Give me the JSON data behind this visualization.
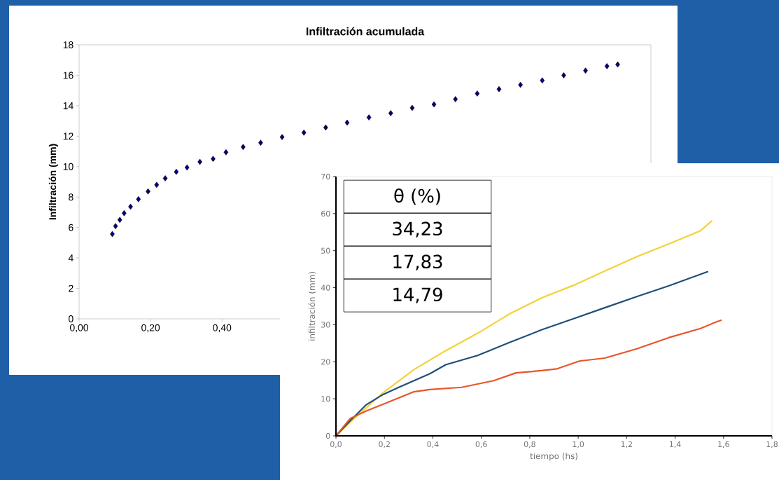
{
  "chart_data": [
    {
      "type": "scatter",
      "title": "Infiltración acumulada",
      "ylabel": "Infiltración (mm)",
      "marker": "diamond",
      "xlim": [
        0,
        1.6
      ],
      "xticks": [
        {
          "value": 0,
          "label": "0,00"
        },
        {
          "value": 0.2,
          "label": "0,20"
        },
        {
          "value": 0.4,
          "label": "0,40"
        }
      ],
      "ylim": [
        0,
        18
      ],
      "yticks": [
        0,
        2,
        4,
        6,
        8,
        10,
        12,
        14,
        16,
        18
      ],
      "series": [
        {
          "color": "#000080",
          "x": [
            0.093,
            0.102,
            0.114,
            0.126,
            0.144,
            0.166,
            0.193,
            0.217,
            0.241,
            0.272,
            0.302,
            0.338,
            0.375,
            0.411,
            0.459,
            0.508,
            0.568,
            0.629,
            0.69,
            0.75,
            0.811,
            0.872,
            0.932,
            0.993,
            1.053,
            1.114,
            1.175,
            1.235,
            1.296,
            1.356,
            1.417,
            1.477,
            1.507
          ],
          "values": [
            5.57,
            6.09,
            6.5,
            6.94,
            7.37,
            7.86,
            8.37,
            8.8,
            9.23,
            9.66,
            9.94,
            10.31,
            10.51,
            10.94,
            11.29,
            11.57,
            11.94,
            12.23,
            12.57,
            12.89,
            13.23,
            13.51,
            13.86,
            14.09,
            14.43,
            14.8,
            15.09,
            15.37,
            15.66,
            16.0,
            16.31,
            16.6,
            16.71
          ]
        }
      ]
    },
    {
      "type": "line",
      "xlabel": "tiempo (hs)",
      "ylabel": "infiltración (mm)",
      "line_style": "solid",
      "xlim": [
        0,
        1.8
      ],
      "xticks": [
        {
          "value": 0,
          "label": "0,0"
        },
        {
          "value": 0.2,
          "label": "0,2"
        },
        {
          "value": 0.4,
          "label": "0,4"
        },
        {
          "value": 0.6,
          "label": "0,6"
        },
        {
          "value": 0.8,
          "label": "0,8"
        },
        {
          "value": 1.0,
          "label": "1,0"
        },
        {
          "value": 1.2,
          "label": "1,2"
        },
        {
          "value": 1.4,
          "label": "1,4"
        },
        {
          "value": 1.6,
          "label": "1,6"
        },
        {
          "value": 1.8,
          "label": "1,8"
        }
      ],
      "ylim": [
        0,
        70
      ],
      "yticks": [
        0,
        10,
        20,
        30,
        40,
        50,
        60,
        70
      ],
      "annotations": [
        "θ (%)",
        "34,23",
        "17,83",
        "14,79"
      ],
      "series": [
        {
          "color": "#f2d23a",
          "x": [
            0,
            0.059,
            0.125,
            0.19,
            0.322,
            0.453,
            0.585,
            0.716,
            0.848,
            0.979,
            1.11,
            1.242,
            1.373,
            1.505,
            1.551
          ],
          "values": [
            0,
            3.7,
            7.6,
            11.4,
            17.9,
            23.0,
            27.7,
            32.9,
            37.2,
            40.6,
            44.5,
            48.4,
            51.8,
            55.4,
            58.0
          ]
        },
        {
          "color": "#1f4e79",
          "x": [
            0,
            0.059,
            0.125,
            0.19,
            0.256,
            0.322,
            0.388,
            0.453,
            0.585,
            0.716,
            0.848,
            0.979,
            1.11,
            1.242,
            1.373,
            1.534
          ],
          "values": [
            0,
            4.1,
            8.4,
            11.0,
            13.0,
            14.9,
            16.8,
            19.2,
            21.7,
            25.2,
            28.6,
            31.6,
            34.6,
            37.6,
            40.5,
            44.3
          ]
        },
        {
          "color": "#e8552a",
          "x": [
            0,
            0.059,
            0.125,
            0.19,
            0.322,
            0.388,
            0.519,
            0.651,
            0.743,
            0.848,
            0.913,
            1.005,
            1.11,
            1.242,
            1.373,
            1.505,
            1.571,
            1.59
          ],
          "values": [
            0,
            4.7,
            6.7,
            8.4,
            11.9,
            12.5,
            13.1,
            14.9,
            17.0,
            17.6,
            18.1,
            20.2,
            21.0,
            23.5,
            26.5,
            29.0,
            30.8,
            31.2
          ]
        }
      ]
    }
  ]
}
